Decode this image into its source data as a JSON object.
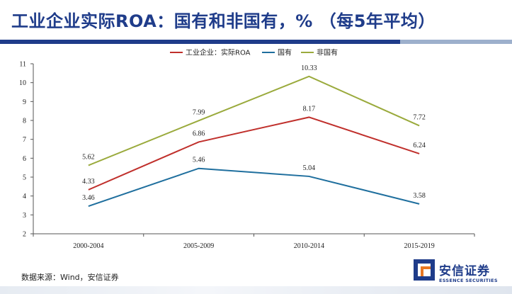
{
  "header": {
    "title": "工业企业实际ROA：国有和非国有，% （每5年平均）"
  },
  "chart_data": {
    "type": "line",
    "title": "",
    "categories": [
      "2000-2004",
      "2005-2009",
      "2010-2014",
      "2015-2019"
    ],
    "series": [
      {
        "name": "工业企业：实际ROA",
        "color": "#c0302c",
        "values": [
          4.33,
          6.86,
          8.17,
          6.24
        ]
      },
      {
        "name": "国有",
        "color": "#1f6f9e",
        "values": [
          3.46,
          5.46,
          5.04,
          3.58
        ]
      },
      {
        "name": "非国有",
        "color": "#9aaa3c",
        "values": [
          5.62,
          7.99,
          10.33,
          7.72
        ]
      }
    ],
    "ylim": [
      2,
      11
    ],
    "yticks": [
      2,
      3,
      4,
      5,
      6,
      7,
      8,
      9,
      10,
      11
    ],
    "legend_position": "top",
    "grid": false
  },
  "footer": {
    "source": "数据来源：Wind，安信证券",
    "logo_cn": "安信证券",
    "logo_en": "ESSENCE SECURITIES"
  }
}
